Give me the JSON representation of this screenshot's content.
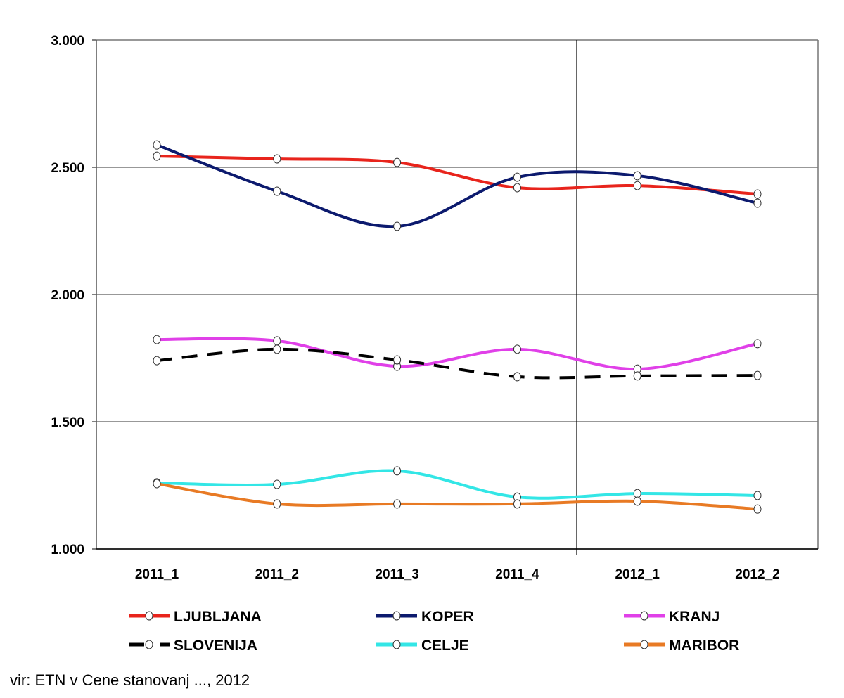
{
  "chart_data": {
    "type": "line",
    "title": "",
    "xlabel": "",
    "ylabel": "",
    "categories": [
      "2011_1",
      "2011_2",
      "2011_3",
      "2011_4",
      "2012_1",
      "2012_2"
    ],
    "ylim": [
      1000,
      3000
    ],
    "yticks": [
      1000,
      1500,
      2000,
      2500,
      3000
    ],
    "ytick_labels": [
      "1.000",
      "1.500",
      "2.000",
      "2.500",
      "3.000"
    ],
    "grid": "horizontal",
    "legend_position": "bottom",
    "series": [
      {
        "name": "LJUBLJANA",
        "color": "#e8241c",
        "dashed": false,
        "values": [
          2544,
          2533,
          2519,
          2420,
          2428,
          2395
        ]
      },
      {
        "name": "KOPER",
        "color": "#0c1a6e",
        "dashed": false,
        "values": [
          2588,
          2406,
          2268,
          2461,
          2467,
          2359
        ]
      },
      {
        "name": "KRANJ",
        "color": "#e040e8",
        "dashed": false,
        "values": [
          1823,
          1818,
          1718,
          1785,
          1707,
          1807
        ]
      },
      {
        "name": "SLOVENIJA",
        "color": "#000000",
        "dashed": true,
        "values": [
          1740,
          1785,
          1743,
          1677,
          1680,
          1682
        ]
      },
      {
        "name": "CELJE",
        "color": "#33e6e6",
        "dashed": false,
        "values": [
          1260,
          1254,
          1307,
          1204,
          1218,
          1210
        ]
      },
      {
        "name": "MARIBOR",
        "color": "#e87a24",
        "dashed": false,
        "values": [
          1257,
          1177,
          1177,
          1177,
          1188,
          1157
        ]
      }
    ]
  },
  "source": "vir: ETN v Cene stanovanj ..., 2012"
}
